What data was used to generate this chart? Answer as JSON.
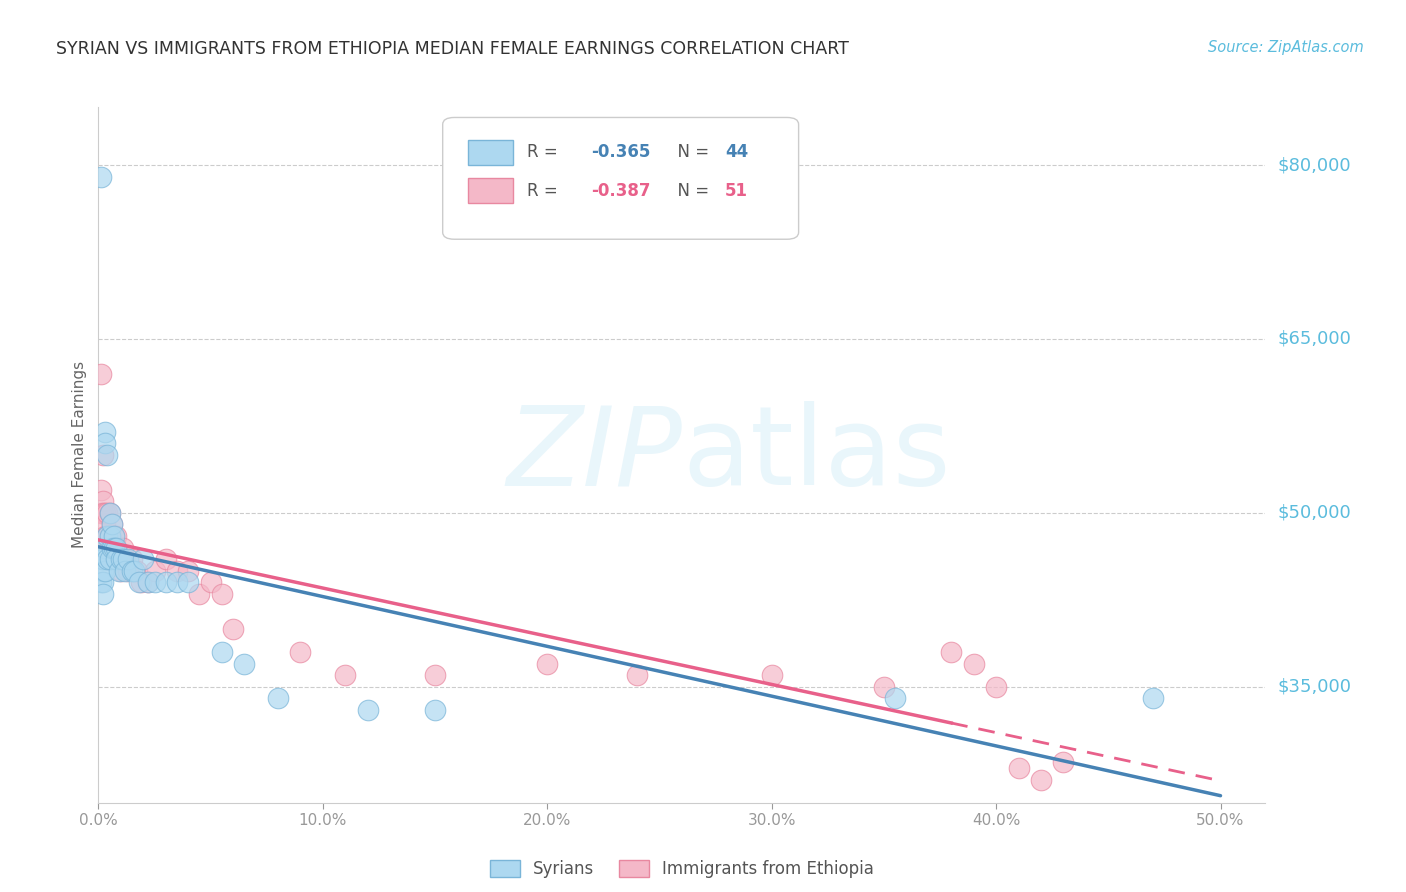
{
  "title": "SYRIAN VS IMMIGRANTS FROM ETHIOPIA MEDIAN FEMALE EARNINGS CORRELATION CHART",
  "source": "Source: ZipAtlas.com",
  "ylabel_label": "Median Female Earnings",
  "xlim": [
    0.0,
    0.52
  ],
  "ylim": [
    25000,
    85000
  ],
  "xtick_values": [
    0.0,
    0.1,
    0.2,
    0.3,
    0.4,
    0.5
  ],
  "xtick_labels": [
    "0.0%",
    "10.0%",
    "20.0%",
    "30.0%",
    "40.0%",
    "50.0%"
  ],
  "ytick_values": [
    35000,
    50000,
    65000,
    80000
  ],
  "ytick_labels": [
    "$35,000",
    "$50,000",
    "$65,000",
    "$80,000"
  ],
  "background_color": "#ffffff",
  "grid_color": "#cccccc",
  "syrians_color": "#add8f0",
  "ethiopia_color": "#f4b8c8",
  "syrians_edge_color": "#7ab5d8",
  "ethiopia_edge_color": "#e888a0",
  "syrians_line_color": "#4682B4",
  "ethiopia_line_color": "#e8608a",
  "syrians_x": [
    0.001,
    0.001,
    0.001,
    0.002,
    0.002,
    0.002,
    0.002,
    0.003,
    0.003,
    0.003,
    0.003,
    0.004,
    0.004,
    0.004,
    0.005,
    0.005,
    0.005,
    0.006,
    0.006,
    0.007,
    0.007,
    0.008,
    0.008,
    0.009,
    0.01,
    0.011,
    0.012,
    0.013,
    0.015,
    0.016,
    0.018,
    0.02,
    0.022,
    0.025,
    0.03,
    0.035,
    0.04,
    0.055,
    0.065,
    0.08,
    0.12,
    0.15,
    0.355,
    0.47
  ],
  "syrians_y": [
    79000,
    46000,
    44000,
    45000,
    44000,
    46000,
    43000,
    57000,
    56000,
    47000,
    45000,
    55000,
    48000,
    46000,
    50000,
    48000,
    46000,
    49000,
    47000,
    48000,
    47000,
    47000,
    46000,
    45000,
    46000,
    46000,
    45000,
    46000,
    45000,
    45000,
    44000,
    46000,
    44000,
    44000,
    44000,
    44000,
    44000,
    38000,
    37000,
    34000,
    33000,
    33000,
    34000,
    34000
  ],
  "ethiopia_x": [
    0.001,
    0.001,
    0.001,
    0.002,
    0.002,
    0.002,
    0.003,
    0.003,
    0.003,
    0.004,
    0.004,
    0.004,
    0.005,
    0.005,
    0.005,
    0.006,
    0.006,
    0.007,
    0.007,
    0.008,
    0.008,
    0.009,
    0.01,
    0.011,
    0.012,
    0.013,
    0.015,
    0.017,
    0.019,
    0.022,
    0.025,
    0.03,
    0.035,
    0.04,
    0.045,
    0.05,
    0.055,
    0.06,
    0.09,
    0.11,
    0.15,
    0.2,
    0.24,
    0.3,
    0.35,
    0.38,
    0.39,
    0.4,
    0.41,
    0.42,
    0.43
  ],
  "ethiopia_y": [
    62000,
    52000,
    50000,
    55000,
    51000,
    50000,
    50000,
    49000,
    48000,
    50000,
    48000,
    46000,
    50000,
    48000,
    47000,
    49000,
    47000,
    48000,
    46000,
    48000,
    47000,
    46000,
    45000,
    47000,
    46000,
    45000,
    46000,
    45000,
    44000,
    44000,
    45000,
    46000,
    45000,
    45000,
    43000,
    44000,
    43000,
    40000,
    38000,
    36000,
    36000,
    37000,
    36000,
    36000,
    35000,
    38000,
    37000,
    35000,
    28000,
    27000,
    28500
  ],
  "syrians_R": -0.365,
  "syrians_N": 44,
  "ethiopia_R": -0.387,
  "ethiopia_N": 51
}
